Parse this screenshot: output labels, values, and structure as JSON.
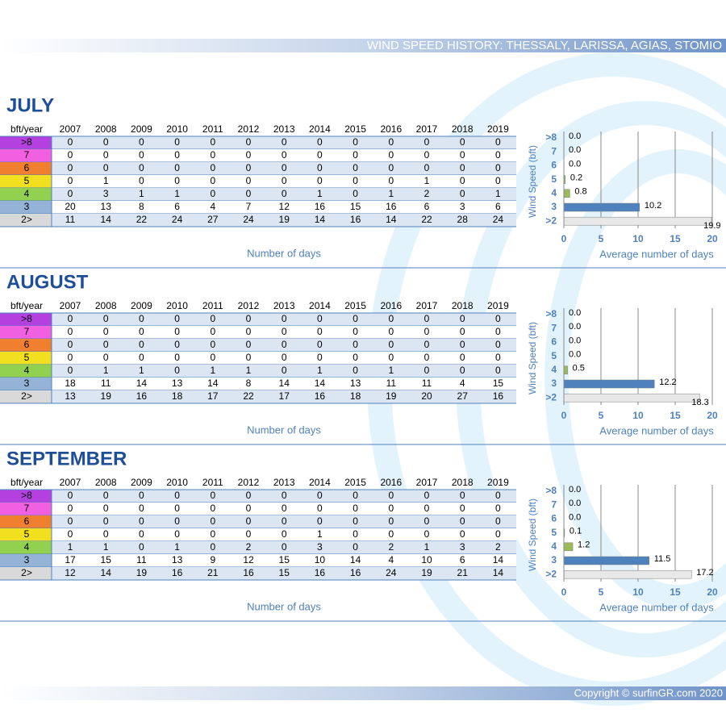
{
  "header": {
    "title": "WIND SPEED HISTORY: THESSALY, LARISSA, AGIAS, STOMIO"
  },
  "sections": [
    {
      "month": "JULY",
      "table": {
        "columns": [
          "bft/year",
          "2007",
          "2008",
          "2009",
          "2010",
          "2011",
          "2012",
          "2013",
          "2014",
          "2015",
          "2016",
          "2017",
          "2018",
          "2019"
        ],
        "rows": [
          [
            ">8",
            0,
            0,
            0,
            0,
            0,
            0,
            0,
            0,
            0,
            0,
            0,
            0,
            0
          ],
          [
            "7",
            0,
            0,
            0,
            0,
            0,
            0,
            0,
            0,
            0,
            0,
            0,
            0,
            0
          ],
          [
            "6",
            0,
            0,
            0,
            0,
            0,
            0,
            0,
            0,
            0,
            0,
            0,
            0,
            0
          ],
          [
            "5",
            0,
            1,
            0,
            0,
            0,
            0,
            0,
            0,
            0,
            0,
            1,
            0,
            0
          ],
          [
            "4",
            0,
            3,
            1,
            1,
            0,
            0,
            0,
            1,
            0,
            1,
            2,
            0,
            1
          ],
          [
            "3",
            20,
            13,
            8,
            6,
            4,
            7,
            12,
            16,
            15,
            16,
            6,
            3,
            6
          ],
          [
            "2>",
            11,
            14,
            22,
            24,
            27,
            24,
            19,
            14,
            16,
            14,
            22,
            28,
            24
          ]
        ]
      },
      "caption": "Number of days"
    },
    {
      "month": "AUGUST",
      "table": {
        "columns": [
          "bft/year",
          "2007",
          "2008",
          "2009",
          "2010",
          "2011",
          "2012",
          "2013",
          "2014",
          "2015",
          "2016",
          "2017",
          "2018",
          "2019"
        ],
        "rows": [
          [
            ">8",
            0,
            0,
            0,
            0,
            0,
            0,
            0,
            0,
            0,
            0,
            0,
            0,
            0
          ],
          [
            "7",
            0,
            0,
            0,
            0,
            0,
            0,
            0,
            0,
            0,
            0,
            0,
            0,
            0
          ],
          [
            "6",
            0,
            0,
            0,
            0,
            0,
            0,
            0,
            0,
            0,
            0,
            0,
            0,
            0
          ],
          [
            "5",
            0,
            0,
            0,
            0,
            0,
            0,
            0,
            0,
            0,
            0,
            0,
            0,
            0
          ],
          [
            "4",
            0,
            1,
            1,
            0,
            1,
            1,
            0,
            1,
            0,
            1,
            0,
            0,
            0
          ],
          [
            "3",
            18,
            11,
            14,
            13,
            14,
            8,
            14,
            14,
            13,
            11,
            11,
            4,
            15
          ],
          [
            "2>",
            13,
            19,
            16,
            18,
            17,
            22,
            17,
            16,
            18,
            19,
            20,
            27,
            16
          ]
        ]
      },
      "caption": "Number of days"
    },
    {
      "month": "SEPTEMBER",
      "table": {
        "columns": [
          "bft/year",
          "2007",
          "2008",
          "2009",
          "2010",
          "2011",
          "2012",
          "2013",
          "2014",
          "2015",
          "2016",
          "2017",
          "2018",
          "2019"
        ],
        "rows": [
          [
            ">8",
            0,
            0,
            0,
            0,
            0,
            0,
            0,
            0,
            0,
            0,
            0,
            0,
            0
          ],
          [
            "7",
            0,
            0,
            0,
            0,
            0,
            0,
            0,
            0,
            0,
            0,
            0,
            0,
            0
          ],
          [
            "6",
            0,
            0,
            0,
            0,
            0,
            0,
            0,
            0,
            0,
            0,
            0,
            0,
            0
          ],
          [
            "5",
            0,
            0,
            0,
            0,
            0,
            0,
            0,
            1,
            0,
            0,
            0,
            0,
            0
          ],
          [
            "4",
            1,
            1,
            0,
            1,
            0,
            2,
            0,
            3,
            0,
            2,
            1,
            3,
            2
          ],
          [
            "3",
            17,
            15,
            11,
            13,
            9,
            12,
            15,
            10,
            14,
            4,
            10,
            6,
            14
          ],
          [
            "2>",
            12,
            14,
            19,
            16,
            21,
            16,
            15,
            16,
            16,
            24,
            19,
            21,
            14
          ]
        ]
      },
      "caption": "Number of days"
    }
  ],
  "chart_data": [
    {
      "type": "bar",
      "orientation": "horizontal",
      "categories": [
        ">8",
        "7",
        "6",
        "5",
        "4",
        "3",
        ">2"
      ],
      "values": [
        0.0,
        0.0,
        0.0,
        0.2,
        0.8,
        10.2,
        19.9
      ],
      "value_labels": [
        "0.0",
        "0.0",
        "0.0",
        "0.2",
        "0.8",
        "10.2",
        "19.9"
      ],
      "colors": [
        "#9bbb59",
        "#9bbb59",
        "#9bbb59",
        "#9bbb59",
        "#9bbb59",
        "#4f81bd",
        "#e8e8e8"
      ],
      "xlim": [
        0,
        20
      ],
      "xticks": [
        0,
        5,
        10,
        15,
        20
      ],
      "grid": true,
      "xlabel": "Average number of days",
      "ylabel": "Wind Speed (bft)"
    },
    {
      "type": "bar",
      "orientation": "horizontal",
      "categories": [
        ">8",
        "7",
        "6",
        "5",
        "4",
        "3",
        ">2"
      ],
      "values": [
        0.0,
        0.0,
        0.0,
        0.0,
        0.5,
        12.2,
        18.3
      ],
      "value_labels": [
        "0.0",
        "0.0",
        "0.0",
        "0.0",
        "0.5",
        "12.2",
        "18.3"
      ],
      "colors": [
        "#9bbb59",
        "#9bbb59",
        "#9bbb59",
        "#9bbb59",
        "#9bbb59",
        "#4f81bd",
        "#e8e8e8"
      ],
      "xlim": [
        0,
        20
      ],
      "xticks": [
        0,
        5,
        10,
        15,
        20
      ],
      "grid": true,
      "xlabel": "Average number of days",
      "ylabel": "Wind Speed (bft)"
    },
    {
      "type": "bar",
      "orientation": "horizontal",
      "categories": [
        ">8",
        "7",
        "6",
        "5",
        "4",
        "3",
        ">2"
      ],
      "values": [
        0.0,
        0.0,
        0.0,
        0.1,
        1.2,
        11.5,
        17.2
      ],
      "value_labels": [
        "0.0",
        "0.0",
        "0.0",
        "0.1",
        "1.2",
        "11.5",
        "17.2"
      ],
      "colors": [
        "#9bbb59",
        "#9bbb59",
        "#9bbb59",
        "#9bbb59",
        "#9bbb59",
        "#4f81bd",
        "#e8e8e8"
      ],
      "xlim": [
        0,
        20
      ],
      "xticks": [
        0,
        5,
        10,
        15,
        20
      ],
      "grid": true,
      "xlabel": "Average number of days",
      "ylabel": "Wind Speed (bft)"
    }
  ],
  "footer": {
    "copyright": "Copyright © surfinGR.com 2020"
  }
}
